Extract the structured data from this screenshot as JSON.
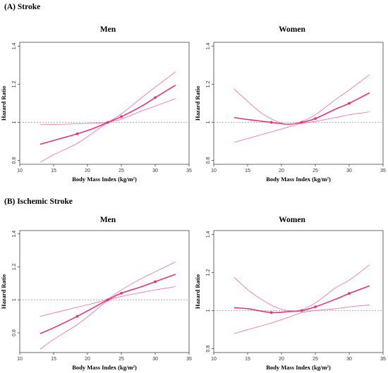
{
  "sections": [
    {
      "title": "(A) Stroke"
    },
    {
      "title": "(B) Ischemic Stroke"
    }
  ],
  "colors": {
    "curve": "#e8337a",
    "ci": "#f06aa0",
    "reference": "#999999",
    "axis": "#444444"
  },
  "chart_data": [
    {
      "type": "line",
      "section": "(A) Stroke",
      "title": "Men",
      "xlabel": "Body Mass Index (kg/m²)",
      "ylabel": "Hazard Ratio",
      "xlim": [
        10,
        35
      ],
      "ylim": [
        0.78,
        1.42
      ],
      "xticks": [
        10,
        15,
        20,
        25,
        30,
        35
      ],
      "yticks": [
        0.8,
        1,
        1.2,
        1.4
      ],
      "reference_y": 1,
      "series": [
        {
          "role": "estimate",
          "x": [
            13,
            15,
            18.5,
            21,
            23,
            25,
            28,
            30,
            33
          ],
          "y": [
            0.885,
            0.905,
            0.94,
            0.97,
            1.0,
            1.03,
            1.085,
            1.13,
            1.195
          ]
        },
        {
          "role": "ci-upper",
          "x": [
            13,
            16,
            19,
            21,
            23,
            25,
            28,
            30,
            33
          ],
          "y": [
            0.99,
            0.99,
            0.993,
            0.996,
            1.003,
            1.045,
            1.13,
            1.185,
            1.265
          ]
        },
        {
          "role": "ci-lower",
          "x": [
            13,
            15,
            18.5,
            21,
            23,
            25,
            28,
            30,
            33
          ],
          "y": [
            0.79,
            0.83,
            0.89,
            0.95,
            0.997,
            1.017,
            1.06,
            1.085,
            1.125
          ]
        }
      ],
      "markers": {
        "x": [
          18.5,
          23,
          25,
          30
        ],
        "y": [
          0.94,
          1.0,
          1.03,
          1.13
        ]
      }
    },
    {
      "type": "line",
      "section": "(A) Stroke",
      "title": "Women",
      "xlabel": "Body Mass Index (kg/m²)",
      "ylabel": "Hazard Ratio",
      "xlim": [
        10,
        35
      ],
      "ylim": [
        0.78,
        1.42
      ],
      "xticks": [
        10,
        15,
        20,
        25,
        30,
        35
      ],
      "yticks": [
        0.8,
        1,
        1.2,
        1.4
      ],
      "reference_y": 1,
      "series": [
        {
          "role": "estimate",
          "x": [
            13,
            15,
            18.5,
            21,
            23,
            25,
            28,
            30,
            33
          ],
          "y": [
            1.025,
            1.015,
            1.0,
            0.99,
            1.0,
            1.02,
            1.07,
            1.1,
            1.155
          ]
        },
        {
          "role": "ci-upper",
          "x": [
            13,
            15,
            17,
            19,
            21,
            23,
            25,
            28,
            30,
            33
          ],
          "y": [
            1.175,
            1.11,
            1.05,
            1.01,
            0.99,
            1.005,
            1.04,
            1.12,
            1.17,
            1.25
          ]
        },
        {
          "role": "ci-lower",
          "x": [
            13,
            15,
            18.5,
            21,
            23,
            25,
            28,
            30,
            33
          ],
          "y": [
            0.895,
            0.915,
            0.95,
            0.975,
            0.995,
            1.005,
            1.025,
            1.04,
            1.055
          ]
        }
      ],
      "markers": {
        "x": [
          18.5,
          23,
          25,
          30
        ],
        "y": [
          1.0,
          1.0,
          1.02,
          1.1
        ]
      }
    },
    {
      "type": "line",
      "section": "(B) Ischemic Stroke",
      "title": "Men",
      "xlabel": "Body Mass Index (kg/m²)",
      "ylabel": "Hazard Ratio",
      "xlim": [
        10,
        35
      ],
      "ylim": [
        0.68,
        1.42
      ],
      "xticks": [
        10,
        15,
        20,
        25,
        30,
        35
      ],
      "yticks": [
        0.8,
        1,
        1.2,
        1.4
      ],
      "reference_y": 1,
      "series": [
        {
          "role": "estimate",
          "x": [
            13,
            15,
            18.5,
            21,
            23,
            25,
            28,
            30,
            33
          ],
          "y": [
            0.795,
            0.83,
            0.9,
            0.955,
            1.0,
            1.04,
            1.08,
            1.11,
            1.155
          ]
        },
        {
          "role": "ci-upper",
          "x": [
            13,
            16,
            19,
            21,
            23,
            25,
            28,
            30,
            33
          ],
          "y": [
            0.9,
            0.93,
            0.96,
            0.98,
            1.005,
            1.06,
            1.13,
            1.17,
            1.23
          ]
        },
        {
          "role": "ci-lower",
          "x": [
            13,
            15,
            18.5,
            21,
            23,
            25,
            28,
            30,
            33
          ],
          "y": [
            0.7,
            0.76,
            0.85,
            0.93,
            0.995,
            1.02,
            1.045,
            1.06,
            1.08
          ]
        }
      ],
      "markers": {
        "x": [
          18.5,
          23,
          25,
          30
        ],
        "y": [
          0.9,
          1.0,
          1.04,
          1.11
        ]
      }
    },
    {
      "type": "line",
      "section": "(B) Ischemic Stroke",
      "title": "Women",
      "xlabel": "Body Mass Index (kg/m²)",
      "ylabel": "Hazard Ratio",
      "xlim": [
        10,
        35
      ],
      "ylim": [
        0.78,
        1.42
      ],
      "xticks": [
        10,
        15,
        20,
        25,
        30,
        35
      ],
      "yticks": [
        0.8,
        1,
        1.2,
        1.4
      ],
      "reference_y": 1,
      "series": [
        {
          "role": "estimate",
          "x": [
            13,
            15,
            18.5,
            21,
            23,
            25,
            28,
            30,
            33
          ],
          "y": [
            1.015,
            1.01,
            0.99,
            0.995,
            1.0,
            1.02,
            1.06,
            1.09,
            1.13
          ]
        },
        {
          "role": "ci-upper",
          "x": [
            13,
            15,
            17,
            19,
            21,
            23,
            25,
            28,
            30,
            33
          ],
          "y": [
            1.175,
            1.11,
            1.06,
            1.02,
            1.0,
            1.005,
            1.04,
            1.12,
            1.16,
            1.24
          ]
        },
        {
          "role": "ci-lower",
          "x": [
            13,
            15,
            18.5,
            21,
            23,
            25,
            28,
            30,
            33
          ],
          "y": [
            0.88,
            0.9,
            0.935,
            0.965,
            0.99,
            1.0,
            1.01,
            1.02,
            1.03
          ]
        }
      ],
      "markers": {
        "x": [
          18.5,
          23,
          25,
          30
        ],
        "y": [
          0.99,
          1.0,
          1.02,
          1.09
        ]
      }
    }
  ]
}
